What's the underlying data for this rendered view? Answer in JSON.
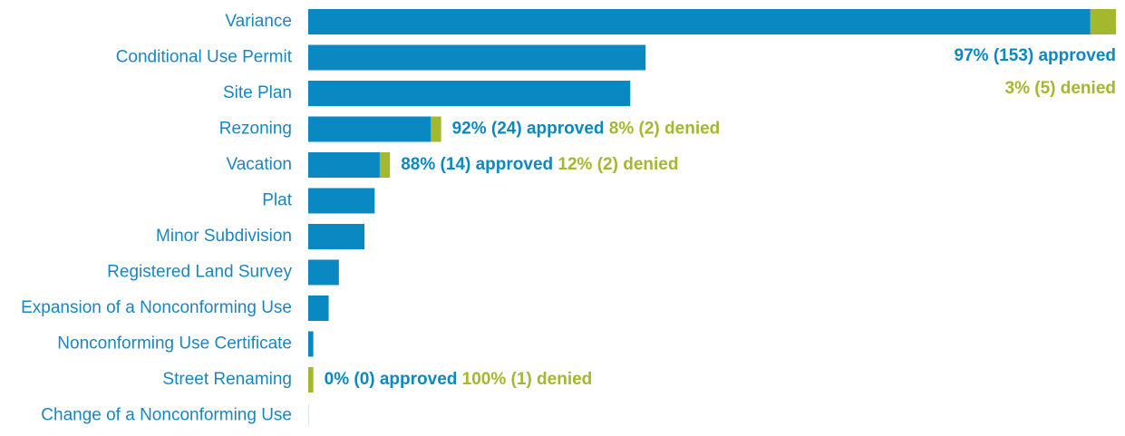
{
  "chart_data": {
    "type": "stacked-hbar",
    "categories": [
      "Variance",
      "Conditional Use Permit",
      "Site Plan",
      "Rezoning",
      "Vacation",
      "Plat",
      "Minor Subdivision",
      "Registered Land Survey",
      "Expansion of a Nonconforming Use",
      "Nonconforming Use Certificate",
      "Street Renaming",
      "Change of a Nonconforming Use"
    ],
    "series": [
      {
        "name": "approved",
        "color": "#0a88c2",
        "values": [
          153,
          66,
          63,
          24,
          14,
          13,
          11,
          6,
          4,
          1,
          0,
          0
        ],
        "value_labels": [
          "97% (153) approved",
          null,
          null,
          "92% (24) approved",
          "88% (14) approved",
          null,
          null,
          null,
          null,
          null,
          "0% (0) approved",
          null
        ]
      },
      {
        "name": "denied",
        "color": "#a3b82c",
        "values": [
          5,
          0,
          0,
          2,
          2,
          0,
          0,
          0,
          0,
          0,
          1,
          0
        ],
        "value_labels": [
          "3% (5) denied",
          null,
          null,
          "8% (2) denied",
          "12% (2) denied",
          null,
          null,
          null,
          null,
          null,
          "100% (1) denied",
          null
        ]
      }
    ],
    "xlim": [
      0,
      158
    ]
  }
}
